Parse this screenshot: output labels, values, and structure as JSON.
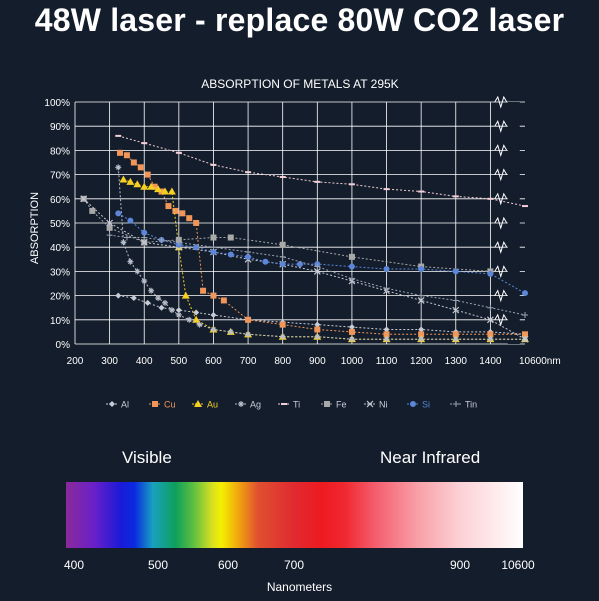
{
  "headline": "48W laser - replace 80W CO2 laser",
  "chart_data": {
    "type": "line",
    "title": "ABSORPTION OF METALS AT 295K",
    "ylabel": "ABSORPTION",
    "xlabel": "",
    "x_unit_suffix": "nm",
    "ylim": [
      0,
      100
    ],
    "y_ticks": [
      "0%",
      "10%",
      "20%",
      "30%",
      "40%",
      "50%",
      "60%",
      "70%",
      "80%",
      "90%",
      "100%"
    ],
    "x_ticks": [
      "200",
      "300",
      "400",
      "500",
      "600",
      "700",
      "800",
      "900",
      "1000",
      "1100",
      "1200",
      "1300",
      "1400",
      "10600"
    ],
    "x_tick_values": [
      200,
      300,
      400,
      500,
      600,
      700,
      800,
      900,
      1000,
      1100,
      1200,
      1300,
      1400,
      1500
    ],
    "axis_break_at": 1430,
    "grid": true,
    "legend_position": "bottom",
    "series": [
      {
        "name": "Al",
        "color": "#c8ccd6",
        "marker": "diamond",
        "x": [
          325,
          370,
          410,
          450,
          500,
          550,
          600,
          700,
          800,
          900,
          1000,
          1100,
          1200,
          1300,
          1400,
          1500
        ],
        "y": [
          20,
          19,
          17,
          15,
          14,
          13,
          12,
          10,
          9,
          8,
          7,
          6,
          6,
          5,
          5,
          4
        ]
      },
      {
        "name": "Cu",
        "color": "#f0965a",
        "marker": "square",
        "x": [
          330,
          350,
          370,
          390,
          410,
          430,
          450,
          470,
          490,
          510,
          530,
          550,
          570,
          600,
          630,
          700,
          800,
          900,
          1000,
          1100,
          1200,
          1300,
          1400,
          1500
        ],
        "y": [
          79,
          78,
          75,
          73,
          70,
          65,
          63,
          57,
          55,
          54,
          52,
          50,
          22,
          20,
          18,
          10,
          8,
          6,
          5,
          4,
          4,
          4,
          4,
          4
        ]
      },
      {
        "name": "Au",
        "color": "#f5d020",
        "marker": "triangle",
        "x": [
          340,
          360,
          380,
          400,
          420,
          440,
          460,
          480,
          500,
          520,
          550,
          600,
          650,
          700,
          800,
          900,
          1000,
          1100,
          1200,
          1300,
          1400,
          1500
        ],
        "y": [
          68,
          67,
          66,
          65,
          65,
          64,
          63,
          63,
          40,
          20,
          10,
          6,
          5,
          4,
          3,
          3,
          2,
          2,
          2,
          2,
          2,
          2
        ]
      },
      {
        "name": "Ag",
        "color": "#b9bec9",
        "marker": "star",
        "x": [
          325,
          340,
          360,
          380,
          400,
          420,
          440,
          460,
          480,
          500,
          530,
          560,
          600,
          650,
          700,
          800,
          900,
          1000,
          1100,
          1200,
          1300,
          1400,
          1500
        ],
        "y": [
          73,
          42,
          34,
          30,
          26,
          22,
          19,
          17,
          14,
          12,
          10,
          8,
          6,
          5,
          4,
          3,
          3,
          2,
          2,
          2,
          2,
          2,
          2
        ]
      },
      {
        "name": "Ti",
        "color": "#f3cfd8",
        "marker": "dash",
        "x": [
          325,
          400,
          500,
          600,
          700,
          800,
          900,
          1000,
          1100,
          1200,
          1300,
          1400,
          1500
        ],
        "y": [
          86,
          83,
          79,
          74,
          71,
          69,
          67,
          66,
          64,
          63,
          61,
          60,
          57
        ]
      },
      {
        "name": "Fe",
        "color": "#a8a8a8",
        "marker": "square",
        "x": [
          225,
          250,
          300,
          400,
          500,
          600,
          650,
          800,
          1000,
          1200,
          1400
        ],
        "y": [
          60,
          55,
          48,
          42,
          43,
          44,
          44,
          41,
          36,
          32,
          30
        ]
      },
      {
        "name": "Ni",
        "color": "#c5c8d2",
        "marker": "x",
        "x": [
          225,
          300,
          400,
          500,
          600,
          700,
          800,
          900,
          1000,
          1100,
          1200,
          1300,
          1400,
          1500
        ],
        "y": [
          60,
          50,
          42,
          40,
          38,
          35,
          33,
          30,
          26,
          22,
          18,
          14,
          10,
          2
        ]
      },
      {
        "name": "Si",
        "color": "#5b86d9",
        "marker": "circle",
        "x": [
          325,
          360,
          400,
          450,
          500,
          550,
          600,
          650,
          700,
          750,
          800,
          850,
          900,
          1000,
          1100,
          1200,
          1300,
          1400,
          1500
        ],
        "y": [
          54,
          51,
          46,
          43,
          41,
          40,
          38,
          37,
          36,
          34,
          33,
          33,
          33,
          32,
          31,
          31,
          30,
          29,
          21
        ]
      },
      {
        "name": "Tin",
        "color": "#9aa3b3",
        "marker": "plus",
        "x": [
          300,
          350,
          400,
          450,
          500,
          600,
          700,
          800,
          900,
          1000,
          1100,
          1200,
          1300,
          1400,
          1500
        ],
        "y": [
          45,
          44,
          44,
          43,
          42,
          40,
          38,
          36,
          32,
          27,
          23,
          20,
          18,
          15,
          12
        ]
      }
    ]
  },
  "spectrum": {
    "visible_label": "Visible",
    "nir_label": "Near Infrared",
    "ticks": [
      "400",
      "500",
      "600",
      "700",
      "900",
      "10600"
    ],
    "xlabel": "Nanometers"
  }
}
